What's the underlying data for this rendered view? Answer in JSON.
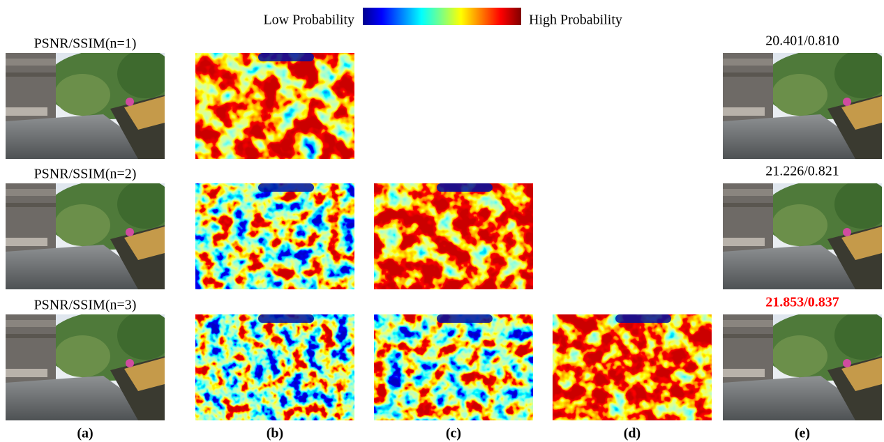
{
  "header": {
    "low_label": "Low Probability",
    "high_label": "High Probability"
  },
  "rows": [
    {
      "label": "PSNR/SSIM(n=1)",
      "score": "20.401/0.810"
    },
    {
      "label": "PSNR/SSIM(n=2)",
      "score": "21.226/0.821"
    },
    {
      "label": "PSNR/SSIM(n=3)",
      "score": "21.853/0.837"
    }
  ],
  "columns": [
    "(a)",
    "(b)",
    "(c)",
    "(d)",
    "(e)"
  ]
}
